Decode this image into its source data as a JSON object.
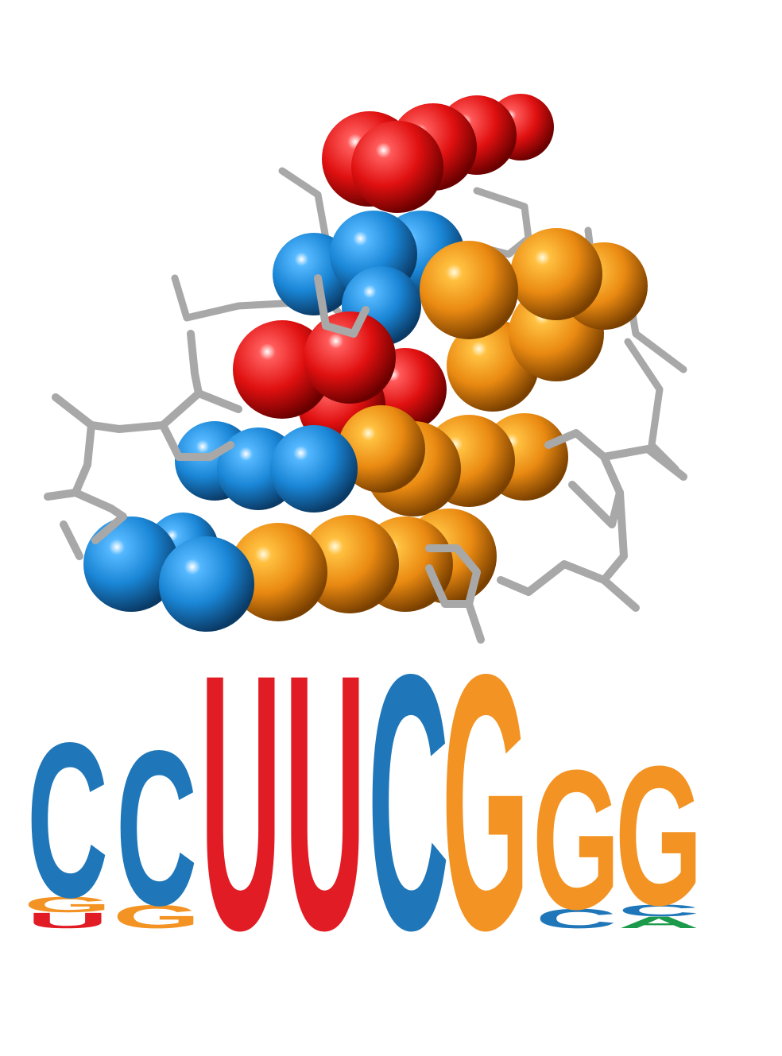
{
  "colors": {
    "A": "#1a9a4a",
    "C": "#1f77b9",
    "G": "#f39323",
    "U": "#e21c25",
    "backbone": "#a8a8a8",
    "sphere_red": "#e01010",
    "sphere_blue": "#1a86d6",
    "sphere_orange": "#ea8a12"
  },
  "logo": {
    "positions": [
      {
        "letters": [
          {
            "base": "U",
            "char": "U",
            "height": 0.2
          },
          {
            "base": "G",
            "char": "G",
            "height": 0.2
          },
          {
            "base": "C",
            "char": "C",
            "height": 2.0
          }
        ]
      },
      {
        "letters": [
          {
            "base": "G",
            "char": "G",
            "height": 0.3
          },
          {
            "base": "C",
            "char": "C",
            "height": 2.0
          }
        ]
      },
      {
        "letters": [
          {
            "base": "U",
            "char": "U",
            "height": 3.3
          }
        ]
      },
      {
        "letters": [
          {
            "base": "U",
            "char": "U",
            "height": 3.3
          }
        ]
      },
      {
        "letters": [
          {
            "base": "C",
            "char": "C",
            "height": 3.3
          }
        ]
      },
      {
        "letters": [
          {
            "base": "G",
            "char": "G",
            "height": 3.3
          }
        ]
      },
      {
        "letters": [
          {
            "base": "C",
            "char": "C",
            "height": 0.25
          },
          {
            "base": "G",
            "char": "G",
            "height": 1.8
          }
        ]
      },
      {
        "letters": [
          {
            "base": "A",
            "char": "A",
            "height": 0.15
          },
          {
            "base": "C",
            "char": "C",
            "height": 0.15
          },
          {
            "base": "G",
            "char": "G",
            "height": 1.8
          }
        ]
      }
    ]
  }
}
